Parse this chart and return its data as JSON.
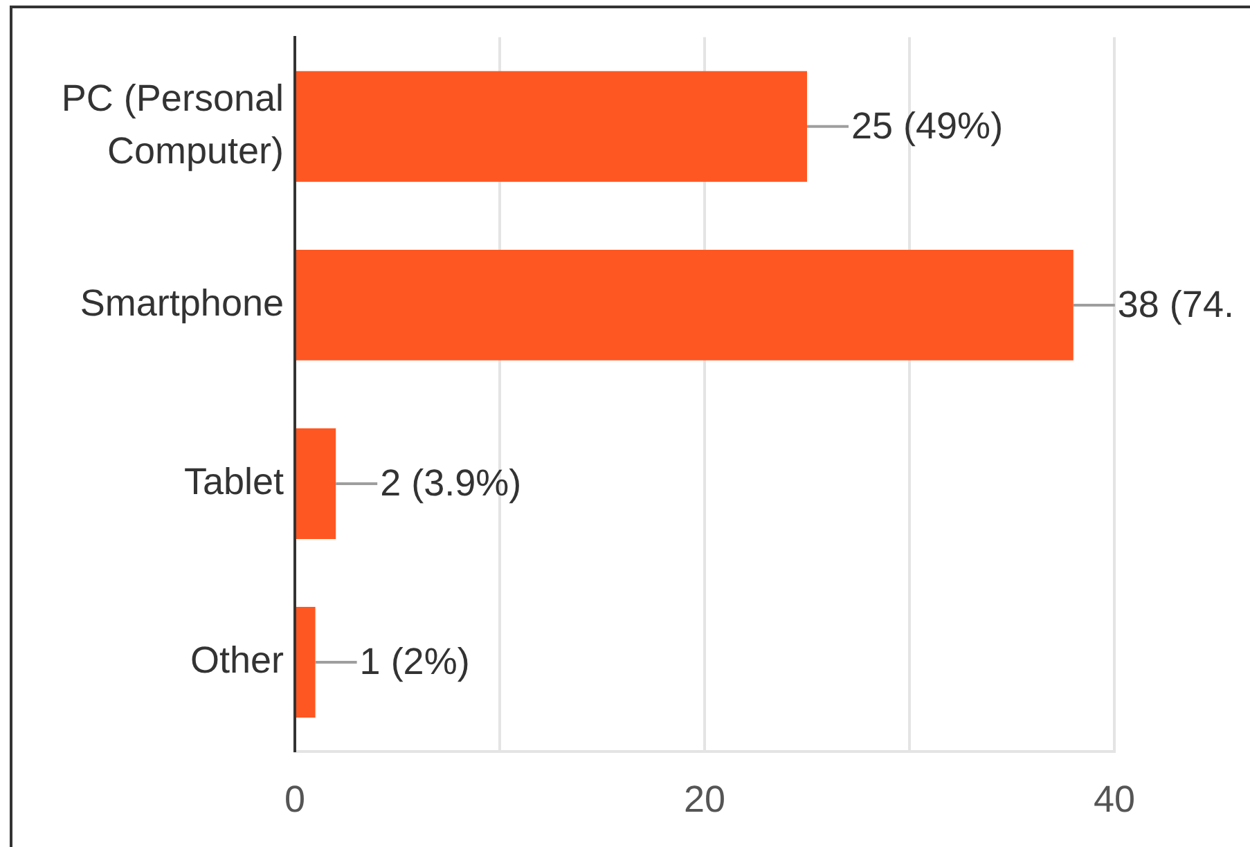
{
  "chart_data": {
    "type": "bar",
    "orientation": "horizontal",
    "categories": [
      "PC (Personal Computer)",
      "Smartphone",
      "Tablet",
      "Other"
    ],
    "values": [
      25,
      38,
      2,
      1
    ],
    "color": "#ff5722",
    "value_labels": [
      "25 (49%)",
      "38 (74.",
      "2 (3.9%)",
      "1 (2%)"
    ],
    "xlim": [
      0,
      40
    ],
    "xticks": [
      0,
      {
        "value": 10,
        "label": null
      },
      20,
      {
        "value": 30,
        "label": null
      },
      40
    ],
    "grid": "x"
  }
}
